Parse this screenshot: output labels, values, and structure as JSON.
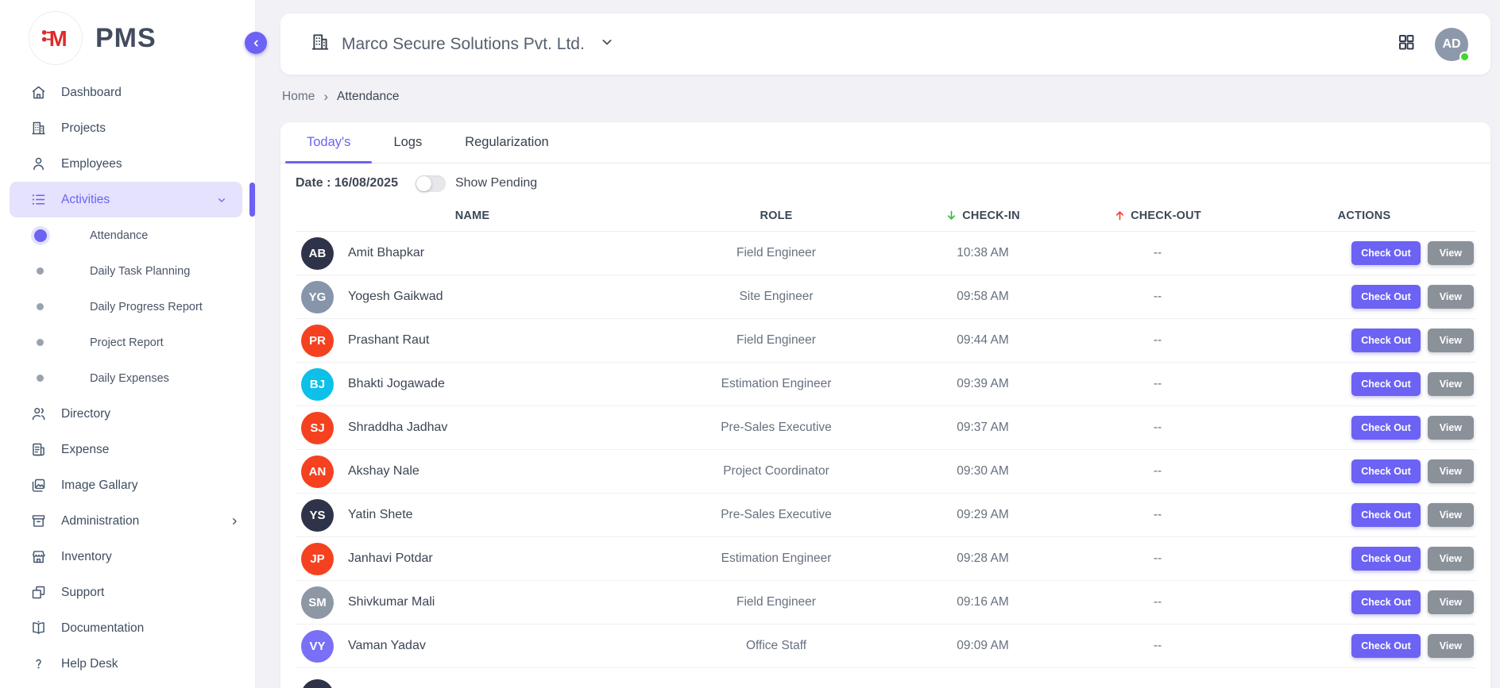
{
  "brand": {
    "app_name": "PMS",
    "logo_letter": "M"
  },
  "header": {
    "company_name": "Marco Secure Solutions Pvt. Ltd.",
    "avatar_initials": "AD"
  },
  "breadcrumb": {
    "home": "Home",
    "current": "Attendance"
  },
  "sidebar": {
    "items": [
      {
        "label": "Dashboard",
        "icon": "home"
      },
      {
        "label": "Projects",
        "icon": "projects"
      },
      {
        "label": "Employees",
        "icon": "employees"
      },
      {
        "label": "Activities",
        "icon": "activities",
        "active": true,
        "chevron": "down",
        "children": [
          {
            "label": "Attendance",
            "active": true
          },
          {
            "label": "Daily Task Planning",
            "active": false
          },
          {
            "label": "Daily Progress Report",
            "active": false
          },
          {
            "label": "Project Report",
            "active": false
          },
          {
            "label": "Daily Expenses",
            "active": false
          }
        ]
      },
      {
        "label": "Directory",
        "icon": "directory"
      },
      {
        "label": "Expense",
        "icon": "expense"
      },
      {
        "label": "Image Gallary",
        "icon": "gallery"
      },
      {
        "label": "Administration",
        "icon": "administration",
        "chevron": "right"
      },
      {
        "label": "Inventory",
        "icon": "inventory"
      },
      {
        "label": "Support",
        "icon": "support"
      },
      {
        "label": "Documentation",
        "icon": "documentation"
      },
      {
        "label": "Help Desk",
        "icon": "help"
      }
    ]
  },
  "tabs": [
    {
      "label": "Today's",
      "active": true
    },
    {
      "label": "Logs",
      "active": false
    },
    {
      "label": "Regularization",
      "active": false
    }
  ],
  "filters": {
    "date_label": "Date : 16/08/2025",
    "show_pending_label": "Show Pending",
    "toggle_on": false
  },
  "table": {
    "columns": {
      "name": "NAME",
      "role": "ROLE",
      "check_in": "CHECK-IN",
      "check_out": "CHECK-OUT",
      "actions": "ACTIONS"
    },
    "sort_arrows": {
      "check_in": "down",
      "check_out": "up"
    },
    "action_labels": {
      "checkout": "Check Out",
      "view": "View"
    },
    "rows": [
      {
        "initials": "AB",
        "avatar_color": "#2f3349",
        "name": "Amit Bhapkar",
        "role": "Field Engineer",
        "check_in": "10:38 AM",
        "check_out": "--",
        "partial": false
      },
      {
        "initials": "YG",
        "avatar_color": "#8695a9",
        "name": "Yogesh Gaikwad",
        "role": "Site Engineer",
        "check_in": "09:58 AM",
        "check_out": "--",
        "partial": false
      },
      {
        "initials": "PR",
        "avatar_color": "#f5411f",
        "name": "Prashant Raut",
        "role": "Field Engineer",
        "check_in": "09:44 AM",
        "check_out": "--",
        "partial": false
      },
      {
        "initials": "BJ",
        "avatar_color": "#0cc0e8",
        "name": "Bhakti Jogawade",
        "role": "Estimation Engineer",
        "check_in": "09:39 AM",
        "check_out": "--",
        "partial": false
      },
      {
        "initials": "SJ",
        "avatar_color": "#f5411f",
        "name": "Shraddha Jadhav",
        "role": "Pre-Sales Executive",
        "check_in": "09:37 AM",
        "check_out": "--",
        "partial": false
      },
      {
        "initials": "AN",
        "avatar_color": "#f5411f",
        "name": "Akshay Nale",
        "role": "Project Coordinator",
        "check_in": "09:30 AM",
        "check_out": "--",
        "partial": false
      },
      {
        "initials": "YS",
        "avatar_color": "#2f3349",
        "name": "Yatin Shete",
        "role": "Pre-Sales Executive",
        "check_in": "09:29 AM",
        "check_out": "--",
        "partial": false
      },
      {
        "initials": "JP",
        "avatar_color": "#f5411f",
        "name": "Janhavi Potdar",
        "role": "Estimation Engineer",
        "check_in": "09:28 AM",
        "check_out": "--",
        "partial": false
      },
      {
        "initials": "SM",
        "avatar_color": "#8e97a4",
        "name": "Shivkumar Mali",
        "role": "Field Engineer",
        "check_in": "09:16 AM",
        "check_out": "--",
        "partial": false
      },
      {
        "initials": "VY",
        "avatar_color": "#7a6ff7",
        "name": "Vaman Yadav",
        "role": "Office Staff",
        "check_in": "09:09 AM",
        "check_out": "--",
        "partial": false
      },
      {
        "initials": "",
        "avatar_color": "#2f3349",
        "name": "",
        "role": "",
        "check_in": "",
        "check_out": "",
        "partial": true
      }
    ]
  },
  "colors": {
    "primary": "#6c62f4",
    "checkin_arrow": "#2fbe3f",
    "checkout_arrow": "#f5402c",
    "online_status": "#44d62c"
  }
}
